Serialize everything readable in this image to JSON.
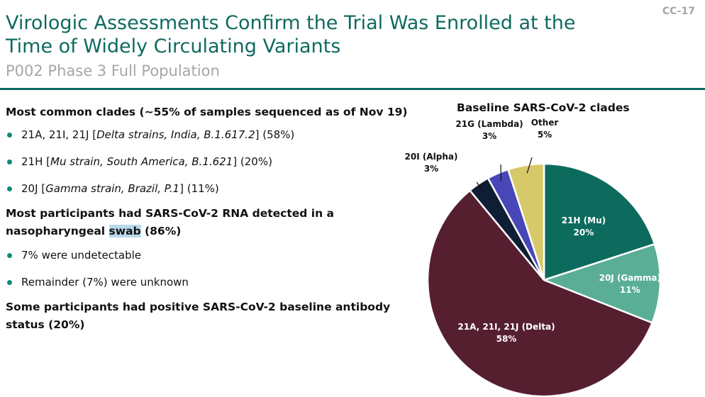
{
  "slide_id": "CC-17",
  "title_line1": "Virologic Assessments Confirm the Trial Was Enrolled at the",
  "title_line2": "Time of Widely Circulating Variants",
  "subtitle": "P002 Phase 3 Full Population",
  "sections": [
    {
      "heading": "Most common clades (~55% of samples sequenced as of Nov 19)",
      "bullets": [
        {
          "pre": "21A, 21I, 21J [",
          "em": "Delta strains, India, B.1.617.2",
          "post": "] (58%)"
        },
        {
          "pre": "21H [",
          "em": "Mu strain, South America, B.1.621",
          "post": "] (20%)"
        },
        {
          "pre": "20J [",
          "em": "Gamma strain, Brazil, P.1",
          "post": "] (11%)"
        }
      ]
    },
    {
      "heading_line1": "Most participants had SARS-CoV-2 RNA detected in a",
      "heading_line2_pre": "nasopharyngeal ",
      "heading_line2_hl": "swab",
      "heading_line2_post": " (86%)",
      "bullets": [
        "7% were undetectable",
        "Remainder (7%) were unknown"
      ]
    },
    {
      "heading_line1": "Some participants had positive SARS-CoV-2 baseline antibody",
      "heading_line2": "status (20%)"
    }
  ],
  "chart_data": {
    "type": "pie",
    "title": "Baseline SARS-CoV-2 clades",
    "slices": [
      {
        "label": "21H (Mu)",
        "value": 20,
        "pct": "20%",
        "color": "#0d6b5e"
      },
      {
        "label": "20J (Gamma)",
        "value": 11,
        "pct": "11%",
        "color": "#5aae96"
      },
      {
        "label": "21A, 21I, 21J (Delta)",
        "value": 58,
        "pct": "58%",
        "color": "#561f2f"
      },
      {
        "label": "20I (Alpha)",
        "value": 3,
        "pct": "3%",
        "color": "#0e1f35"
      },
      {
        "label": "21G (Lambda)",
        "value": 3,
        "pct": "3%",
        "color": "#4747b8"
      },
      {
        "label": "Other",
        "value": 5,
        "pct": "5%",
        "color": "#d7c96a"
      }
    ]
  }
}
